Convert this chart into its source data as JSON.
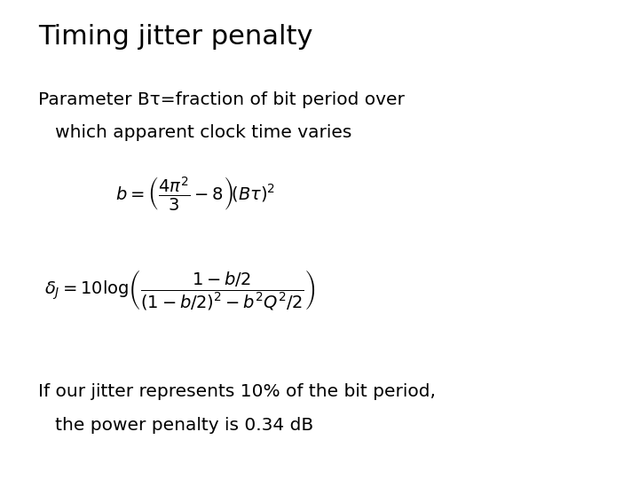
{
  "title": "Timing jitter penalty",
  "param_line1": "Parameter Bτ=fraction of bit period over",
  "param_line2": "   which apparent clock time varies",
  "eq1": "$b = \\left(\\dfrac{4\\pi^2}{3} - 8\\right)\\!(B\\tau)^2$",
  "eq2": "$\\delta_J = 10\\log\\!\\left(\\dfrac{1-b/2}{(1-b/2)^2 - b^2Q^2/2}\\right)$",
  "footer_line1": "If our jitter represents 10% of the bit period,",
  "footer_line2": "   the power penalty is 0.34 dB",
  "bg_color": "#ffffff",
  "text_color": "#000000",
  "title_fontsize": 22,
  "body_fontsize": 14.5,
  "eq_fontsize": 14,
  "footer_fontsize": 14.5
}
